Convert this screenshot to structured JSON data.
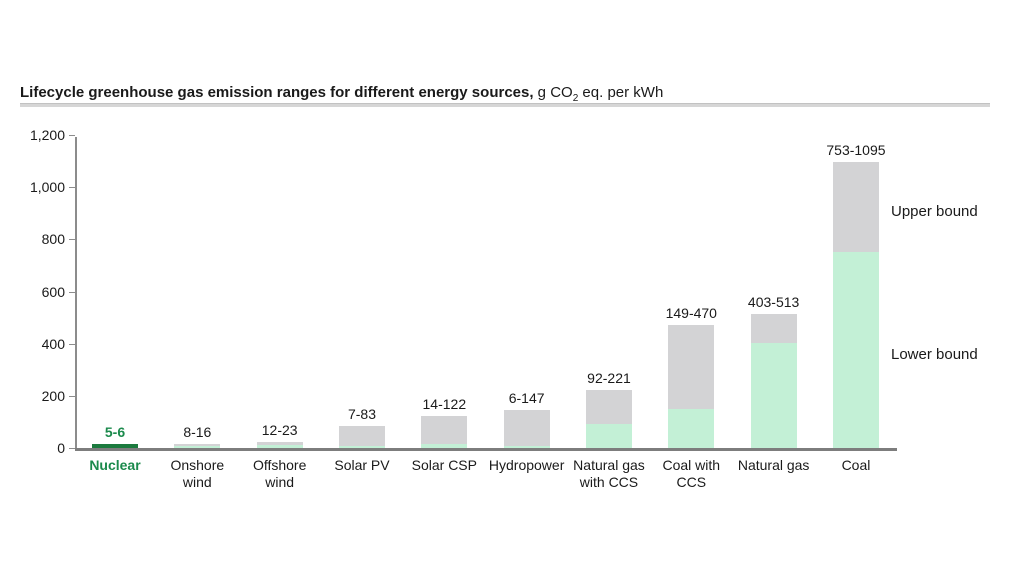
{
  "title": {
    "main": "Lifecycle greenhouse gas emission ranges for different energy sources,",
    "unit_prefix": " g CO",
    "unit_sub": "2",
    "unit_suffix": " eq. per kWh"
  },
  "annotations": {
    "upper": "Upper bound",
    "lower": "Lower bound"
  },
  "colors": {
    "lower_bound_fill": "#c3f0d6",
    "upper_bound_fill": "#d3d3d5",
    "highlight_bar": "#1b7a3e",
    "highlight_text": "#1b8a4c",
    "axis": "#8c8c8c"
  },
  "chart_data": {
    "type": "bar",
    "stacked": true,
    "title": "Lifecycle greenhouse gas emission ranges for different energy sources, g CO2 eq. per kWh",
    "xlabel": "",
    "ylabel": "",
    "ylim": [
      0,
      1200
    ],
    "grid": false,
    "legend_position": "right-annotations",
    "categories": [
      "Nuclear",
      "Onshore wind",
      "Offshore wind",
      "Solar PV",
      "Solar CSP",
      "Hydropower",
      "Natural gas with CCS",
      "Coal with CCS",
      "Natural gas",
      "Coal"
    ],
    "series": [
      {
        "name": "Lower bound",
        "values": [
          5,
          8,
          12,
          7,
          14,
          6,
          92,
          149,
          403,
          753
        ]
      },
      {
        "name": "Upper bound",
        "values": [
          6,
          16,
          23,
          83,
          122,
          147,
          221,
          470,
          513,
          1095
        ]
      }
    ],
    "bar_labels": [
      "5-6",
      "8-16",
      "12-23",
      "7-83",
      "14-122",
      "6-147",
      "92-221",
      "149-470",
      "403-513",
      "753-1095"
    ],
    "highlight_index": 0,
    "yticks": [
      {
        "value": 0,
        "label": "0"
      },
      {
        "value": 200,
        "label": "200"
      },
      {
        "value": 400,
        "label": "400"
      },
      {
        "value": 600,
        "label": "600"
      },
      {
        "value": 800,
        "label": "800"
      },
      {
        "value": 1000,
        "label": "1,000"
      },
      {
        "value": 1200,
        "label": "1,200"
      }
    ]
  }
}
